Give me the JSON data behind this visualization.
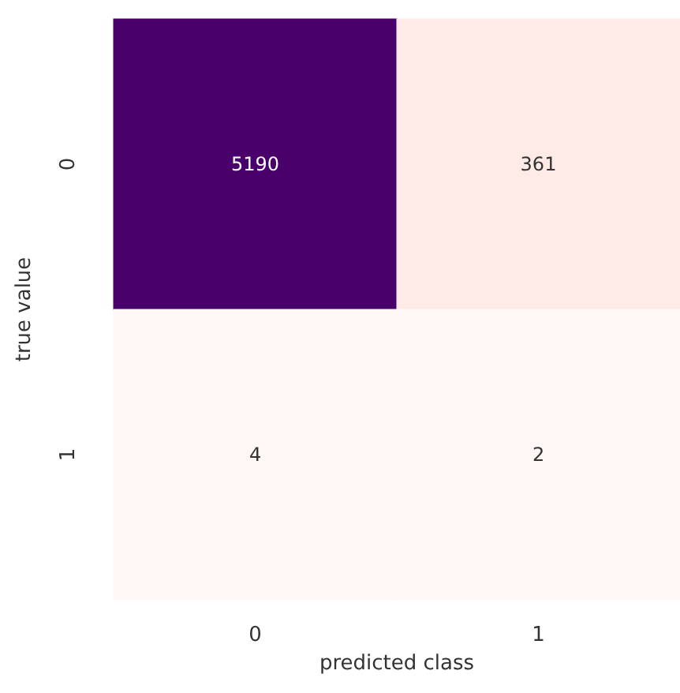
{
  "chart_data": {
    "type": "heatmap",
    "xlabel": "predicted class",
    "ylabel": "true value",
    "categories": [
      "0",
      "1"
    ],
    "y_categories": [
      "0",
      "1"
    ],
    "cells": [
      [
        5190,
        361
      ],
      [
        4,
        2
      ]
    ],
    "data_labels": true
  }
}
